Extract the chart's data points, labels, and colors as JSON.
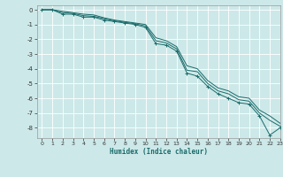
{
  "xlabel": "Humidex (Indice chaleur)",
  "bg_color": "#cde8e8",
  "grid_color": "#ffffff",
  "line_color": "#1a6b6b",
  "xlim": [
    -0.5,
    23
  ],
  "ylim": [
    -8.7,
    0.3
  ],
  "yticks": [
    0,
    -1,
    -2,
    -3,
    -4,
    -5,
    -6,
    -7,
    -8
  ],
  "xticks": [
    0,
    1,
    2,
    3,
    4,
    5,
    6,
    7,
    8,
    9,
    10,
    11,
    12,
    13,
    14,
    15,
    16,
    17,
    18,
    19,
    20,
    21,
    22,
    23
  ],
  "series": [
    [
      0.0,
      0.0,
      -0.3,
      -0.3,
      -0.5,
      -0.5,
      -0.7,
      -0.8,
      -0.9,
      -1.0,
      -1.2,
      -2.3,
      -2.4,
      -2.8,
      -4.3,
      -4.5,
      -5.2,
      -5.7,
      -6.0,
      -6.3,
      -6.4,
      -7.2,
      -8.5,
      -8.0
    ],
    [
      0.0,
      0.0,
      -0.2,
      -0.25,
      -0.4,
      -0.45,
      -0.6,
      -0.75,
      -0.85,
      -0.95,
      -1.1,
      -2.1,
      -2.25,
      -2.65,
      -4.1,
      -4.2,
      -5.0,
      -5.5,
      -5.7,
      -6.1,
      -6.2,
      -7.0,
      -7.5,
      -7.9
    ],
    [
      0.0,
      0.0,
      -0.1,
      -0.2,
      -0.3,
      -0.35,
      -0.55,
      -0.7,
      -0.8,
      -0.9,
      -1.0,
      -1.9,
      -2.1,
      -2.5,
      -3.8,
      -4.0,
      -4.8,
      -5.3,
      -5.5,
      -5.9,
      -6.0,
      -6.8,
      -7.2,
      -7.7
    ]
  ]
}
